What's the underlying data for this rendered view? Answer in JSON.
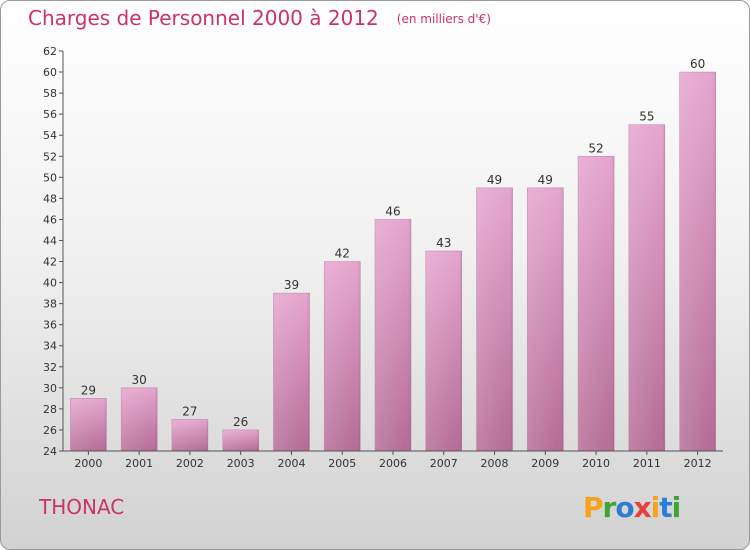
{
  "header": {
    "title": "Charges de Personnel 2000 à 2012",
    "subtitle": "(en milliers d'€)"
  },
  "commune": "THONAC",
  "logo": {
    "text": "Proxiti",
    "letters": [
      {
        "ch": "P",
        "color": "#f7a21b"
      },
      {
        "ch": "r",
        "color": "#3fa535"
      },
      {
        "ch": "o",
        "color": "#2a7fd4"
      },
      {
        "ch": "x",
        "color": "#e8413a"
      },
      {
        "ch": "i",
        "color": "#f7a21b"
      },
      {
        "ch": "t",
        "color": "#2a7fd4"
      },
      {
        "ch": "i",
        "color": "#3fa535"
      }
    ]
  },
  "chart_data": {
    "type": "bar",
    "title": "Charges de Personnel 2000 à 2012",
    "subtitle": "(en milliers d'€)",
    "categories": [
      "2000",
      "2001",
      "2002",
      "2003",
      "2004",
      "2005",
      "2006",
      "2007",
      "2008",
      "2009",
      "2010",
      "2011",
      "2012"
    ],
    "values": [
      29,
      30,
      27,
      26,
      39,
      42,
      46,
      43,
      49,
      49,
      52,
      55,
      60
    ],
    "ylim": [
      24,
      62
    ],
    "ytick_step": 2,
    "grid": false,
    "colors": {
      "bar_top": "#e5a6ce",
      "bar_bottom": "#b56c95",
      "axis": "#555555"
    }
  }
}
